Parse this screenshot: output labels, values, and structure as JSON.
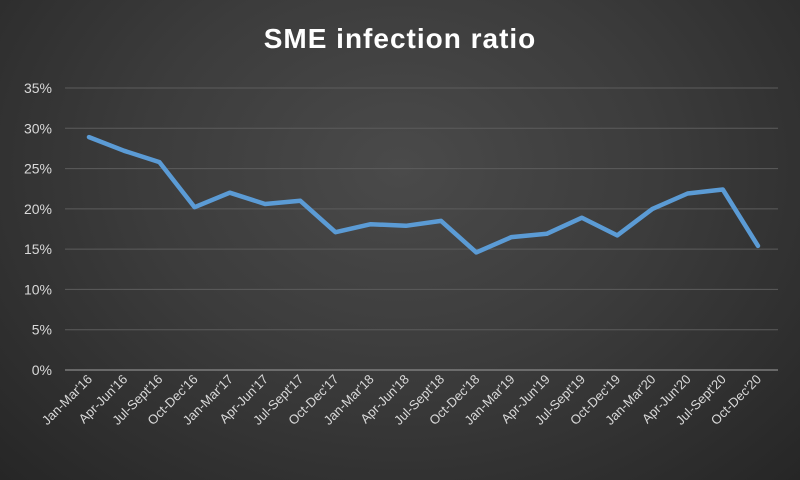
{
  "chart_data": {
    "type": "line",
    "title": "SME infection ratio",
    "xlabel": "",
    "ylabel": "",
    "categories": [
      "Jan-Mar'16",
      "Apr-Jun'16",
      "Jul-Sept'16",
      "Oct-Dec'16",
      "Jan-Mar'17",
      "Apr-Jun'17",
      "Jul-Sept'17",
      "Oct-Dec'17",
      "Jan-Mar'18",
      "Apr-Jun'18",
      "Jul-Sept'18",
      "Oct-Dec'18",
      "Jan-Mar'19",
      "Apr-Jun'19",
      "Jul-Sept'19",
      "Oct-Dec'19",
      "Jan-Mar'20",
      "Apr-Jun'20",
      "Jul-Sept'20",
      "Oct-Dec'20"
    ],
    "series": [
      {
        "name": "SME infection ratio",
        "color": "#5b9bd5",
        "values": [
          28.9,
          27.2,
          25.8,
          20.2,
          22.0,
          20.6,
          21.0,
          17.1,
          18.1,
          17.9,
          18.5,
          14.6,
          16.5,
          16.9,
          18.9,
          16.7,
          20.0,
          21.9,
          22.4,
          15.4
        ]
      }
    ],
    "ylim": [
      0,
      35
    ],
    "yticks": [
      0,
      5,
      10,
      15,
      20,
      25,
      30,
      35
    ],
    "ytick_labels": [
      "0%",
      "5%",
      "10%",
      "15%",
      "20%",
      "25%",
      "30%",
      "35%"
    ],
    "grid": true,
    "legend": "none"
  }
}
